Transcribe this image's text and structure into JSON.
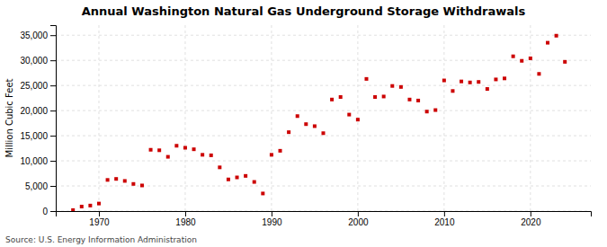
{
  "chart_data": {
    "type": "scatter",
    "title": "Annual Washington Natural  Gas Underground Storage Withdrawals",
    "ylabel": "Million Cubic Feet",
    "annotations": [
      "Source: U.S. Energy Information Administration"
    ],
    "color": "#cc0000",
    "marker": "square",
    "grid": true,
    "xlim": [
      1965,
      2027
    ],
    "ylim": [
      0,
      37000
    ],
    "xticks": [
      1970,
      1980,
      1990,
      2000,
      2010,
      2020
    ],
    "yticks": [
      0,
      {
        "value": 5000,
        "label": "5,000"
      },
      {
        "value": 10000,
        "label": "10,000"
      },
      {
        "value": 15000,
        "label": "15,000"
      },
      {
        "value": 20000,
        "label": "20,000"
      },
      {
        "value": 25000,
        "label": "25,000"
      },
      {
        "value": 30000,
        "label": "30,000"
      },
      {
        "value": 35000,
        "label": "35,000"
      }
    ],
    "x": [
      1967,
      1968,
      1969,
      1970,
      1971,
      1972,
      1973,
      1974,
      1975,
      1976,
      1977,
      1978,
      1979,
      1980,
      1981,
      1982,
      1983,
      1984,
      1985,
      1986,
      1987,
      1988,
      1989,
      1990,
      1991,
      1992,
      1993,
      1994,
      1995,
      1996,
      1997,
      1998,
      1999,
      2000,
      2001,
      2002,
      2003,
      2004,
      2005,
      2006,
      2007,
      2008,
      2009,
      2010,
      2011,
      2012,
      2013,
      2014,
      2015,
      2016,
      2017,
      2018,
      2019,
      2020,
      2021,
      2022,
      2023,
      2024
    ],
    "values": [
      200,
      900,
      1100,
      1500,
      6200,
      6400,
      6000,
      5400,
      5100,
      12200,
      12100,
      10800,
      13000,
      12600,
      12300,
      11200,
      11100,
      8700,
      6300,
      6700,
      7000,
      5800,
      3500,
      11200,
      12000,
      15700,
      18900,
      17300,
      16900,
      15500,
      22200,
      22700,
      19200,
      18200,
      26300,
      22700,
      22800,
      24900,
      24700,
      22200,
      22000,
      19800,
      20100,
      26000,
      23900,
      25800,
      25600,
      25700,
      24300,
      26200,
      26400,
      30800,
      29900,
      30400,
      27300,
      33500,
      34900,
      29700
    ]
  }
}
